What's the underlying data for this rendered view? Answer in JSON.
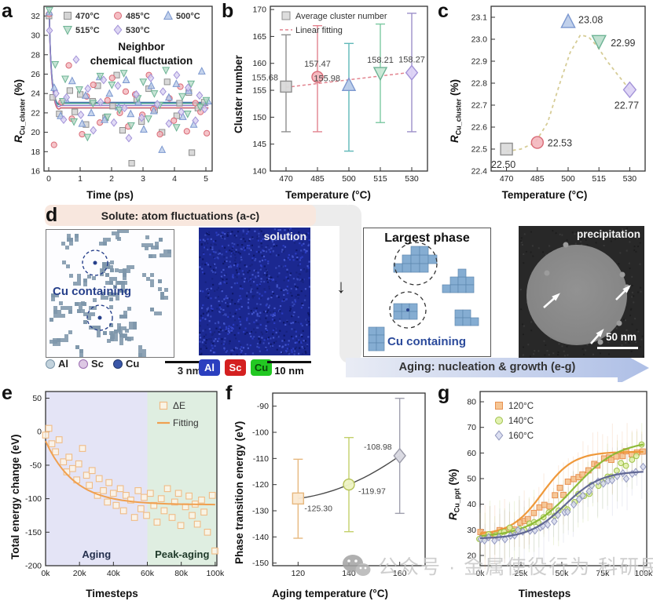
{
  "letters": {
    "a": "a",
    "b": "b",
    "c": "c",
    "d": "d",
    "e": "e",
    "f": "f",
    "g": "g"
  },
  "watermark": {
    "icon": "wechat-icon",
    "text": "公众号 · 金属使役行为 科研民工"
  },
  "panel_d": {
    "solute_banner": "Solute: atom fluctuations (a-c)",
    "aging_banner": "Aging: nucleation & growth (e-g)",
    "down_arrow": "↓",
    "atom_map": {
      "annotation": "Cu containing",
      "legend": [
        "Al",
        "Sc",
        "Cu"
      ],
      "scale": "3 nm"
    },
    "solution_map": {
      "title": "solution",
      "chips": [
        "Al",
        "Sc",
        "Cu"
      ],
      "scale": "10 nm"
    },
    "largest_phase": {
      "title": "Largest phase",
      "annotation": "Cu containing"
    },
    "precipitation": {
      "title": "precipitation",
      "scale": "50 nm"
    }
  },
  "chart_data": [
    {
      "id": "a",
      "type": "scatter",
      "title_lines": [
        "Neighbor",
        "chemical fluctuation"
      ],
      "xlabel": "Time (ps)",
      "ylabel": {
        "prefix": "R",
        "sub": "Cu_cluster",
        "suffix": " (%)"
      },
      "xlim": [
        -0.15,
        5.2
      ],
      "ylim": [
        16,
        33
      ],
      "xticks": [
        0,
        1,
        2,
        3,
        4,
        5
      ],
      "yticks": [
        16,
        18,
        20,
        22,
        24,
        26,
        28,
        30,
        32
      ],
      "x_step": 0.2,
      "series": [
        {
          "name": "470°C",
          "marker": "square",
          "fill": "#cfcfcf",
          "stroke": "#8f8f8f",
          "fit_level": 22.5,
          "fit_color": "#8f8f8f",
          "y": [
            32.0,
            23.6,
            21.9,
            24.3,
            22.1,
            23.9,
            20.8,
            23.2,
            24.8,
            21.5,
            22.7,
            25.9,
            20.2,
            16.8,
            23.4,
            21.1,
            24.5,
            22.3,
            20.0,
            25.2,
            21.7,
            23.0,
            24.1,
            17.9,
            22.5,
            23.1
          ]
        },
        {
          "name": "485°C",
          "marker": "circle",
          "fill": "#f3b6bd",
          "stroke": "#d96a76",
          "fit_level": 22.53,
          "fit_color": "#d96a76",
          "y": [
            32.2,
            18.7,
            23.1,
            26.9,
            21.4,
            19.8,
            23.7,
            24.9,
            21.0,
            23.3,
            25.6,
            22.0,
            24.2,
            20.6,
            23.9,
            21.8,
            25.9,
            22.4,
            19.8,
            23.5,
            21.2,
            24.7,
            20.1,
            23.0,
            22.1,
            19.9
          ]
        },
        {
          "name": "500°C",
          "marker": "triangle-up",
          "fill": "#b9cbe9",
          "stroke": "#7b97cf",
          "fit_level": 23.08,
          "fit_color": "#4f6fb5",
          "y": [
            32.4,
            24.6,
            21.7,
            23.4,
            25.3,
            20.9,
            23.8,
            22.0,
            25.7,
            21.3,
            24.0,
            22.6,
            25.4,
            21.9,
            23.1,
            20.3,
            24.8,
            22.2,
            18.2,
            23.6,
            25.0,
            21.6,
            24.3,
            20.8,
            26.3,
            23.2
          ]
        },
        {
          "name": "515°C",
          "marker": "triangle-down",
          "fill": "#b9ddcb",
          "stroke": "#6cb394",
          "fit_level": 22.99,
          "fit_color": "#3e9e8a",
          "y": [
            32.6,
            27.0,
            23.2,
            25.5,
            21.1,
            24.4,
            19.5,
            23.0,
            25.8,
            21.6,
            24.9,
            22.3,
            26.1,
            20.7,
            23.5,
            25.2,
            21.4,
            24.0,
            22.8,
            26.4,
            20.5,
            23.7,
            21.9,
            25.0,
            22.6,
            23.3
          ]
        },
        {
          "name": "530°C",
          "marker": "diamond",
          "fill": "#d9d2f2",
          "stroke": "#a393d8",
          "fit_level": 22.77,
          "fit_color": "#8f7fc9",
          "y": [
            30.5,
            24.0,
            21.3,
            23.6,
            27.5,
            21.8,
            24.5,
            20.2,
            23.1,
            25.4,
            21.0,
            24.8,
            22.5,
            19.4,
            23.9,
            21.5,
            25.6,
            22.9,
            24.2,
            20.9,
            25.9,
            22.1,
            24.6,
            21.2,
            23.8,
            22.4
          ]
        }
      ]
    },
    {
      "id": "b",
      "type": "errorbar",
      "legend": [
        "Average cluster number",
        "Linear fitting"
      ],
      "xlabel": "Temperature (°C)",
      "ylabel": "Cluster number",
      "categories": [
        470,
        485,
        500,
        515,
        530
      ],
      "values": [
        155.68,
        157.47,
        155.98,
        158.21,
        158.27
      ],
      "labels": [
        "155.68",
        "157.47",
        "155.98",
        "158.21",
        "158.27"
      ],
      "err_lo": [
        147.3,
        147.3,
        143.7,
        149.0,
        147.3
      ],
      "err_hi": [
        165.3,
        167.0,
        163.7,
        167.3,
        169.3
      ],
      "ylim": [
        140,
        170.6
      ],
      "yticks": [
        140,
        145,
        150,
        155,
        160,
        165,
        170
      ],
      "bar_colors": [
        "#8f8f8f",
        "#e2848f",
        "#5fb8b8",
        "#7cc9a2",
        "#9d90c9"
      ],
      "marker_shapes": [
        "square",
        "circle",
        "triangle-up",
        "triangle-down",
        "diamond"
      ],
      "marker_fills": [
        "#d9d9d9",
        "#f3b6bd",
        "#b9cbe9",
        "#c9e8d6",
        "#dcd2f5"
      ],
      "marker_strokes": [
        "#8f8f8f",
        "#d96a76",
        "#7b97cf",
        "#6cb394",
        "#a393d8"
      ],
      "label_pos": [
        [
          -10,
          -8,
          "end"
        ],
        [
          0,
          -13,
          "middle"
        ],
        [
          -11,
          -5,
          "end"
        ],
        [
          0,
          -13,
          "middle"
        ],
        [
          0,
          -13,
          "middle"
        ]
      ],
      "fit": {
        "x": [
          470,
          530
        ],
        "y": [
          155.55,
          158.35
        ],
        "color": "#e2848f"
      }
    },
    {
      "id": "c",
      "type": "scatter-curve",
      "xlabel": "Temperature (°C)",
      "ylabel": {
        "prefix": "R",
        "sub": "Cu_cluster",
        "suffix": " (%)"
      },
      "categories": [
        470,
        485,
        500,
        515,
        530
      ],
      "values": [
        22.5,
        22.53,
        23.08,
        22.99,
        22.77
      ],
      "labels": [
        "22.50",
        "22.53",
        "23.08",
        "22.99",
        "22.77"
      ],
      "marker_shapes": [
        "square",
        "circle",
        "triangle-up",
        "triangle-down",
        "diamond"
      ],
      "marker_fills": [
        "#d9d9d9",
        "#f3b6bd",
        "#b9cbe9",
        "#b9ddcb",
        "#dcd2f5"
      ],
      "marker_strokes": [
        "#8f8f8f",
        "#d96a76",
        "#7b97cf",
        "#6cb394",
        "#a393d8"
      ],
      "ylim": [
        22.4,
        23.15
      ],
      "yticks": [
        22.4,
        22.5,
        22.6,
        22.7,
        22.8,
        22.9,
        23.0,
        23.1
      ],
      "curve_color": "#d6cc96",
      "curve": [
        [
          470,
          22.49
        ],
        [
          477,
          22.5
        ],
        [
          484,
          22.53
        ],
        [
          490,
          22.62
        ],
        [
          496,
          22.8
        ],
        [
          501,
          22.94
        ],
        [
          506,
          23.02
        ],
        [
          510,
          23.01
        ],
        [
          514,
          22.97
        ],
        [
          519,
          22.9
        ],
        [
          524,
          22.84
        ],
        [
          530,
          22.77
        ]
      ],
      "label_pos": [
        [
          -4,
          24,
          "middle"
        ],
        [
          13,
          5,
          "start"
        ],
        [
          13,
          2,
          "start"
        ],
        [
          15,
          6,
          "start"
        ],
        [
          -4,
          24,
          "middle"
        ]
      ]
    },
    {
      "id": "e",
      "type": "decay",
      "legend": [
        "ΔE",
        "Fitting"
      ],
      "xlabel": "Timesteps",
      "ylabel": "Total energy change (eV)",
      "xlim": [
        0,
        101000
      ],
      "ylim": [
        -200,
        60
      ],
      "xticks": [
        0,
        20000,
        40000,
        60000,
        80000,
        100000
      ],
      "xtick_labels": [
        "0k",
        "20k",
        "40k",
        "60k",
        "80k",
        "100k"
      ],
      "yticks": [
        -200,
        -150,
        -100,
        -50,
        0,
        50
      ],
      "regions": [
        {
          "label": "Aging",
          "from": 0,
          "to": 60000,
          "color": "#e4e4f6",
          "text_color": "#25304e"
        },
        {
          "label": "Peak-aging",
          "from": 60000,
          "to": 101000,
          "color": "#dfeee1",
          "text_color": "#1f3a2a"
        }
      ],
      "x_step": 2000,
      "scatter": [
        -5,
        5,
        -18,
        -30,
        -12,
        -45,
        -60,
        -38,
        -55,
        -72,
        -48,
        -25,
        -65,
        -80,
        -58,
        -95,
        -70,
        -88,
        -105,
        -76,
        -92,
        -110,
        -85,
        -118,
        -95,
        -102,
        -128,
        -88,
        -115,
        -98,
        -125,
        -92,
        -110,
        -135,
        -100,
        -118,
        -85,
        -128,
        -105,
        -92,
        -140,
        -112,
        -96,
        -125,
        -108,
        -138,
        -102,
        -120,
        -150,
        -95,
        -178
      ],
      "marker_fill": "#fdf4e6",
      "marker_stroke": "#f0bc86",
      "fit": {
        "start": -14,
        "asymptote": -109,
        "tau": 17000,
        "color": "#f0a050"
      }
    },
    {
      "id": "f",
      "type": "errorbar",
      "xlabel": "Aging temperature (°C)",
      "ylabel": "Phase transition energy (eV)",
      "categories": [
        120,
        140,
        160
      ],
      "values": [
        -125.3,
        -119.97,
        -108.98
      ],
      "labels": [
        "-125.30",
        "-119.97",
        "-108.98"
      ],
      "err_lo": [
        -140.5,
        -138.0,
        -131.0
      ],
      "err_hi": [
        -110.3,
        -102.0,
        -87.0
      ],
      "ylim": [
        -151,
        -85
      ],
      "yticks": [
        -150,
        -140,
        -130,
        -120,
        -110,
        -100,
        -90
      ],
      "bar_colors": [
        "#e7b87e",
        "#c3cf6a",
        "#a0a0ae"
      ],
      "marker_shapes": [
        "square",
        "circle",
        "diamond"
      ],
      "marker_fills": [
        "#fbe9d2",
        "#eef3c4",
        "#d9d9e2"
      ],
      "marker_strokes": [
        "#e7b87e",
        "#b5c257",
        "#9a9aa8"
      ],
      "label_pos": [
        [
          8,
          16,
          "start"
        ],
        [
          12,
          12,
          "start"
        ],
        [
          -10,
          -8,
          "end"
        ]
      ],
      "line_color": "#4a4a4a"
    },
    {
      "id": "g",
      "type": "sigmoid",
      "xlabel": "Timesteps",
      "ylabel": {
        "prefix": "R",
        "sub": "Cu_ppt",
        "suffix": " (%)"
      },
      "xlim": [
        0,
        102000
      ],
      "ylim": [
        16,
        84
      ],
      "xticks": [
        0,
        25000,
        50000,
        75000,
        100000
      ],
      "xtick_labels": [
        "0k",
        "25k",
        "50k",
        "75k",
        "100k"
      ],
      "yticks": [
        20,
        30,
        40,
        50,
        60,
        70,
        80
      ],
      "x_step": 3000,
      "series": [
        {
          "name": "120°C",
          "marker": "square",
          "fill": "#f5c08a",
          "stroke": "#e89050",
          "line": "#ee9430",
          "curve": {
            "base": 28,
            "amp": 32.5,
            "mid": 38000,
            "tau": 9500
          },
          "y": [
            28.5,
            27.2,
            29.0,
            28.1,
            30.2,
            29.5,
            31.0,
            30.1,
            32.5,
            34.0,
            33.2,
            36.5,
            38.0,
            40.2,
            39.5,
            43.0,
            45.5,
            44.2,
            48.0,
            50.5,
            49.8,
            52.5,
            54.0,
            55.8,
            54.5,
            57.2,
            58.5,
            57.8,
            59.5,
            58.8,
            60.2,
            59.6,
            61.0,
            60.4
          ]
        },
        {
          "name": "140°C",
          "marker": "circle",
          "fill": "#dff0a8",
          "stroke": "#9fc24a",
          "line": "#8ab832",
          "curve": {
            "base": 27,
            "amp": 38,
            "mid": 57000,
            "tau": 14000
          },
          "y": [
            26.8,
            27.5,
            28.2,
            27.8,
            29.0,
            28.5,
            30.1,
            29.6,
            31.2,
            30.8,
            32.0,
            33.5,
            32.8,
            34.5,
            36.0,
            35.2,
            37.5,
            39.0,
            38.2,
            41.0,
            43.5,
            42.8,
            45.0,
            47.2,
            46.5,
            49.0,
            51.5,
            50.8,
            53.0,
            55.5,
            54.8,
            57.0,
            59.5,
            63.0
          ]
        },
        {
          "name": "160°C",
          "marker": "diamond",
          "fill": "#d8dcef",
          "stroke": "#9399bf",
          "line": "#5b628f",
          "curve": {
            "base": 26.5,
            "amp": 26.5,
            "mid": 52000,
            "tau": 11000
          },
          "y": [
            26.2,
            25.8,
            27.0,
            26.5,
            27.8,
            27.2,
            28.5,
            28.0,
            29.2,
            28.8,
            30.0,
            29.5,
            31.2,
            30.8,
            32.5,
            33.8,
            35.0,
            36.5,
            38.0,
            40.2,
            42.0,
            43.8,
            45.5,
            46.8,
            48.0,
            47.2,
            49.5,
            48.8,
            50.2,
            51.5,
            50.8,
            52.0,
            53.5,
            54.8
          ]
        }
      ]
    }
  ]
}
